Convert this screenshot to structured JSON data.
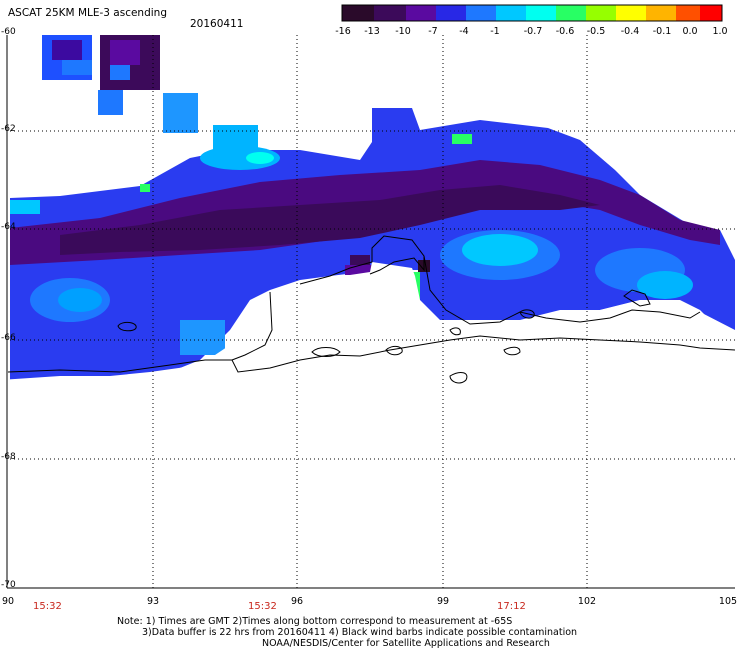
{
  "title": "ASCAT 25KM MLE-3 ascending",
  "date": "20160411",
  "colorbar": {
    "labels": [
      "-16",
      "-13",
      "-10",
      "-7",
      "-4",
      "-1",
      "-0.7",
      "-0.6",
      "-0.5",
      "-0.4",
      "-0.1",
      "0.0",
      "1.0"
    ],
    "colors": [
      "#2a0a2a",
      "#3c0a5a",
      "#5a0aa0",
      "#2828e6",
      "#1e78ff",
      "#00c8ff",
      "#00fff0",
      "#28ff64",
      "#96ff00",
      "#ffff00",
      "#ffb400",
      "#ff5000",
      "#ff0000"
    ]
  },
  "axes": {
    "lat_labels": [
      "-60",
      "-62",
      "-64",
      "-66",
      "-68",
      "-70"
    ],
    "lon_labels": [
      "90",
      "93",
      "96",
      "99",
      "102",
      "105"
    ]
  },
  "times": [
    "15:32",
    "15:32",
    "17:12"
  ],
  "notes": {
    "line1": "Note: 1) Times are GMT 2)Times along bottom correspond to measurement at -65S",
    "line2": "3)Data buffer is 22 hrs from 20160411 4) Black wind barbs indicate possible contamination",
    "line3": "NOAA/NESDIS/Center for Satellite Applications and Research"
  }
}
